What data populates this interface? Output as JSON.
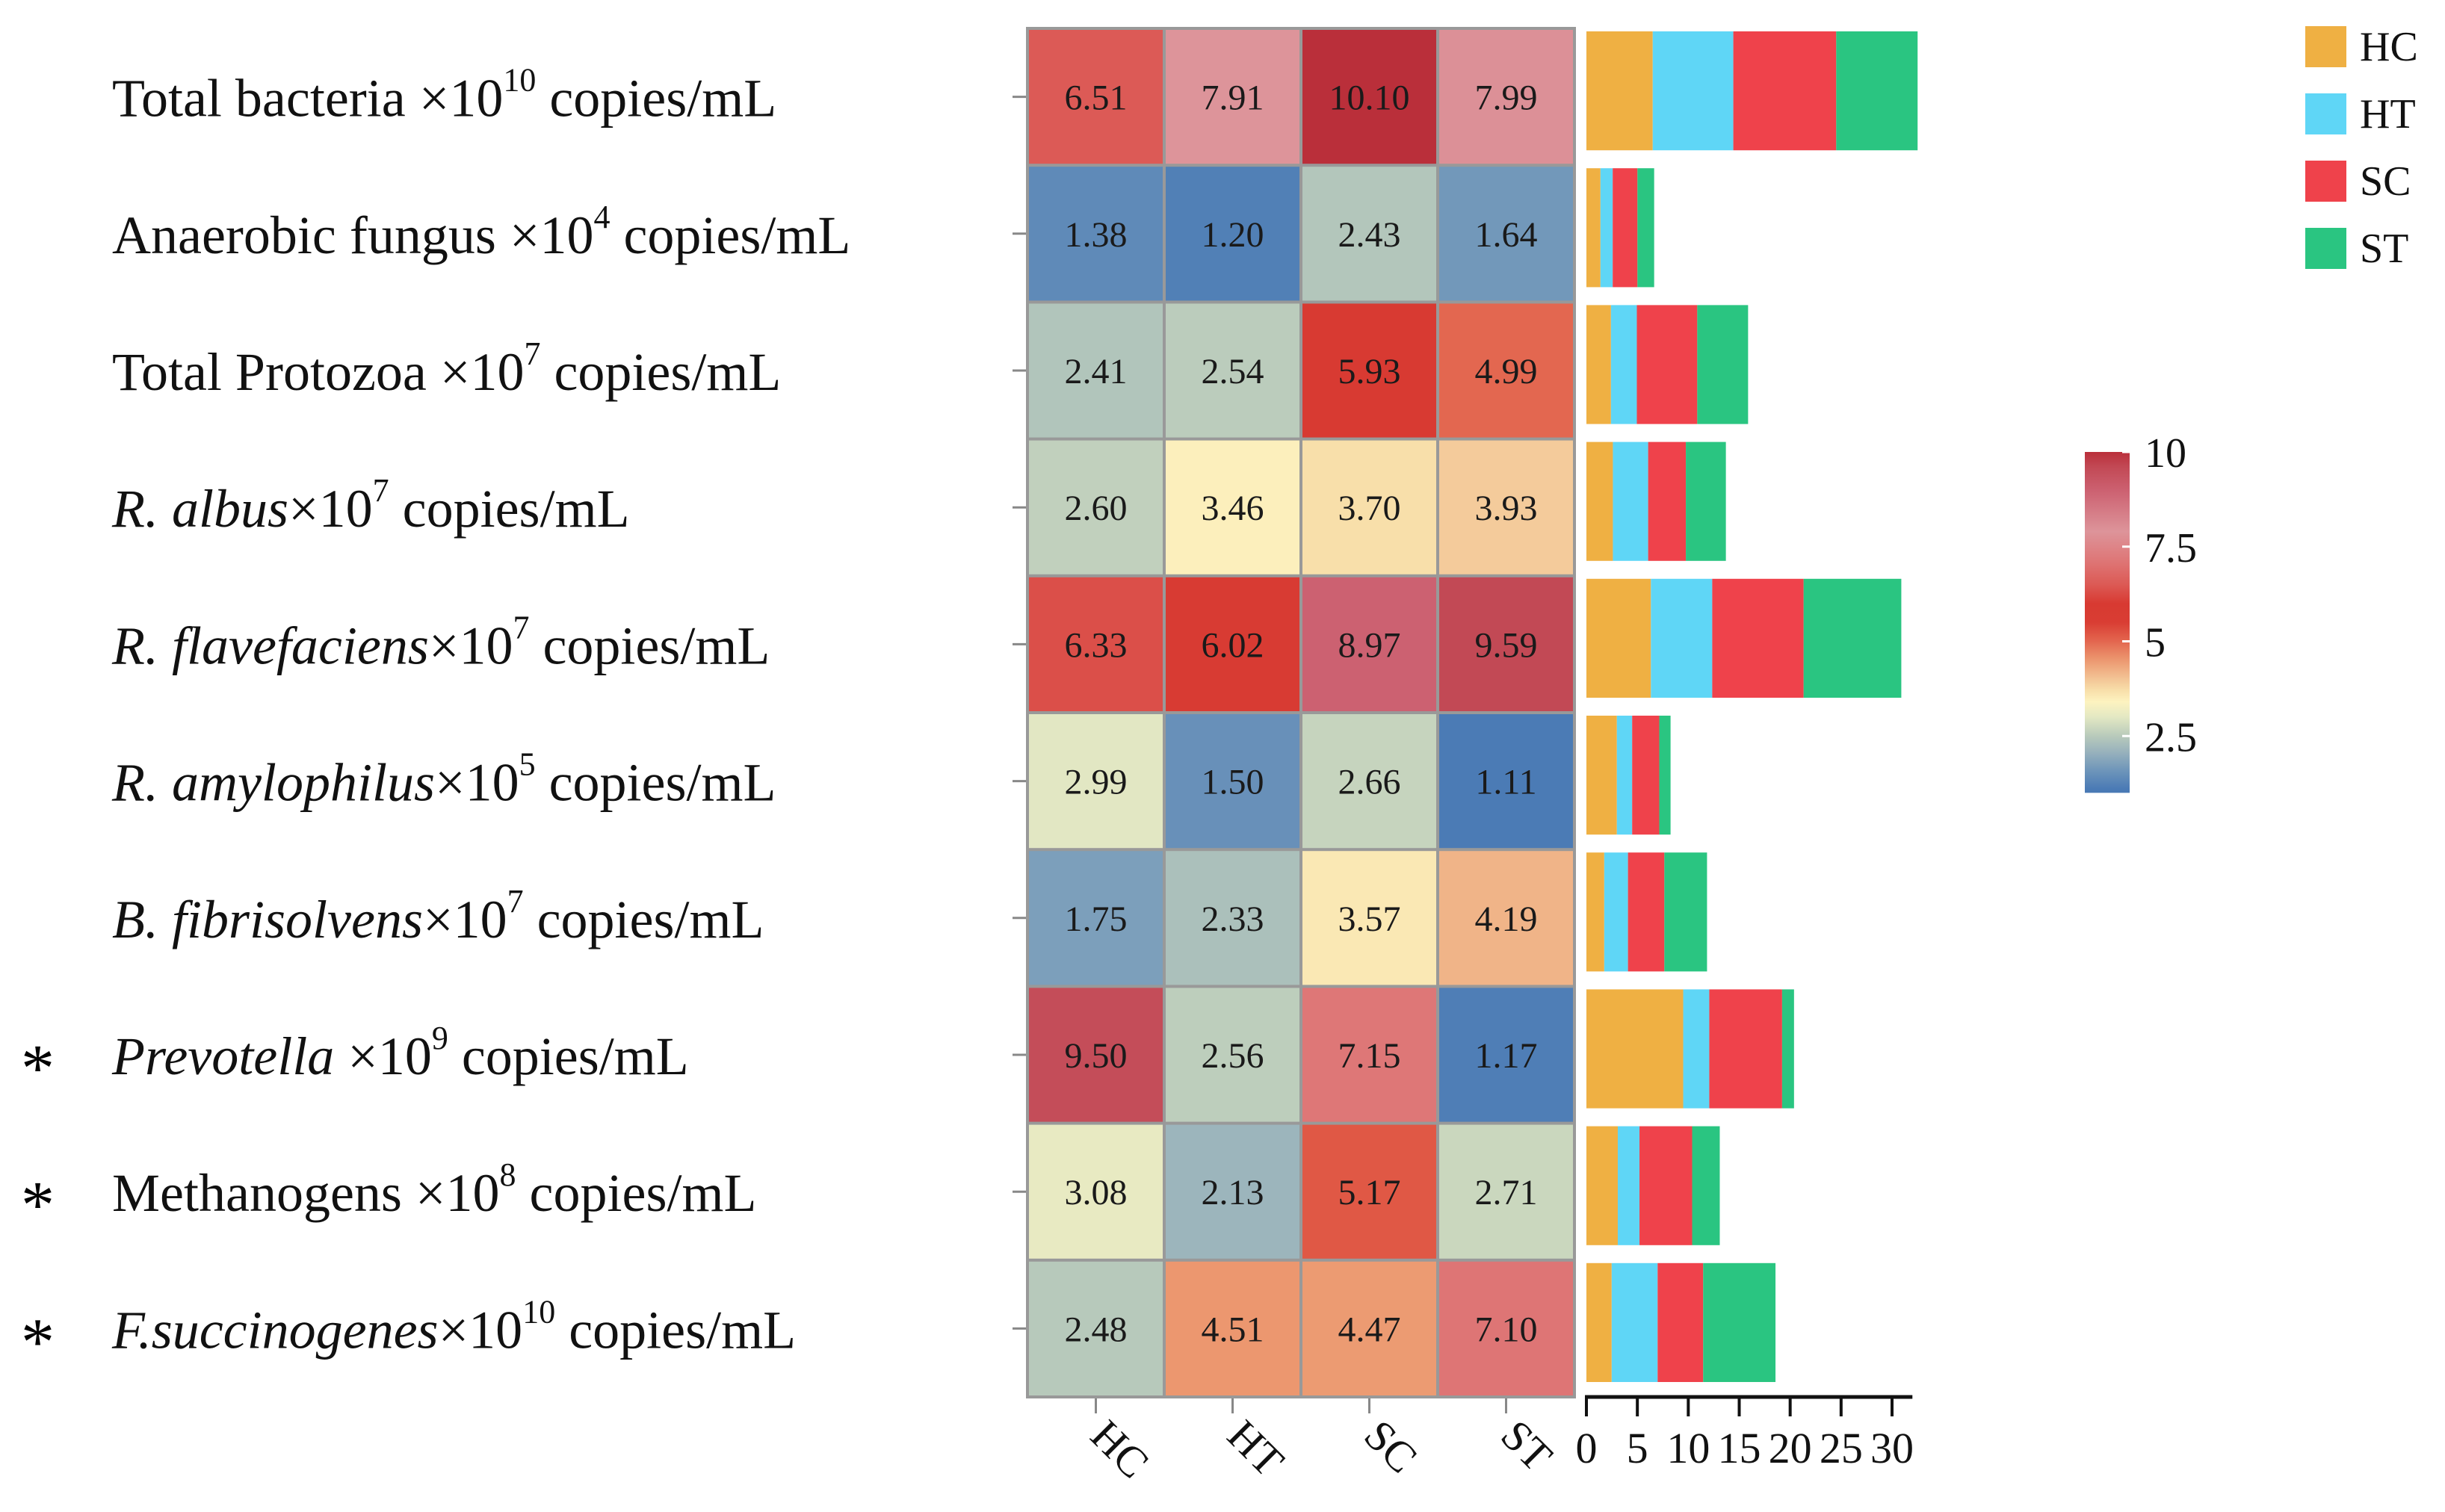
{
  "chart_data": {
    "type": "heatmap",
    "columns": [
      "HC",
      "HT",
      "SC",
      "ST"
    ],
    "rows": [
      {
        "marker": "",
        "name": "Total bacteria",
        "italic": false,
        "exponent": "10",
        "unit": " copies/mL",
        "values": [
          6.51,
          7.91,
          10.1,
          7.99
        ]
      },
      {
        "marker": "",
        "name": "Anaerobic fungus",
        "italic": false,
        "exponent": "4",
        "unit": " copies/mL",
        "values": [
          1.38,
          1.2,
          2.43,
          1.64
        ]
      },
      {
        "marker": "",
        "name": "Total Protozoa",
        "italic": false,
        "exponent": "7",
        "unit": " copies/mL",
        "values": [
          2.41,
          2.54,
          5.93,
          4.99
        ]
      },
      {
        "marker": "",
        "name": "R. albus",
        "italic": true,
        "exponent": "7",
        "unit": " copies/mL",
        "values": [
          2.6,
          3.46,
          3.7,
          3.93
        ]
      },
      {
        "marker": "",
        "name": "R. flavefaciens",
        "italic": true,
        "exponent": "7",
        "unit": " copies/mL",
        "values": [
          6.33,
          6.02,
          8.97,
          9.59
        ]
      },
      {
        "marker": "",
        "name": "R. amylophilus",
        "italic": true,
        "exponent": "5",
        "unit": " copies/mL",
        "values": [
          2.99,
          1.5,
          2.66,
          1.11
        ]
      },
      {
        "marker": "",
        "name": "B. fibrisolvens",
        "italic": true,
        "exponent": "7",
        "unit": " copies/mL",
        "values": [
          1.75,
          2.33,
          3.57,
          4.19
        ]
      },
      {
        "marker": "*",
        "name": "Prevotella",
        "italic": true,
        "exponent": "9",
        "unit": " copies/mL",
        "values": [
          9.5,
          2.56,
          7.15,
          1.17
        ]
      },
      {
        "marker": "*",
        "name": "Methanogens",
        "italic": false,
        "exponent": "8",
        "unit": " copies/mL",
        "values": [
          3.08,
          2.13,
          5.17,
          2.71
        ]
      },
      {
        "marker": "*",
        "name": "F.succinogenes",
        "italic": true,
        "exponent": "10",
        "unit": " copies/mL",
        "values": [
          2.48,
          4.51,
          4.47,
          7.1
        ]
      }
    ],
    "times_prefix": "×10",
    "bar_panel": {
      "type": "stacked-bar",
      "xlim": [
        0,
        32
      ],
      "xticks": [
        "0",
        "5",
        "10",
        "15",
        "20",
        "25",
        "30"
      ],
      "series_colors": {
        "HC": "#efb043",
        "HT": "#5fd6f6",
        "SC": "#ef424b",
        "ST": "#2ac581"
      }
    },
    "legend": [
      {
        "label": "HC",
        "color": "#efb043"
      },
      {
        "label": "HT",
        "color": "#5fd6f6"
      },
      {
        "label": "SC",
        "color": "#ef424b"
      },
      {
        "label": "ST",
        "color": "#2ac581"
      }
    ],
    "colorbar": {
      "range": [
        1,
        10
      ],
      "ticks": [
        "10",
        "7.5",
        "5",
        "2.5"
      ],
      "stops": [
        [
          1.1,
          "#4a7ab5"
        ],
        [
          1.6,
          "#6f96ba"
        ],
        [
          2.1,
          "#9ab3bc"
        ],
        [
          2.5,
          "#b8cabb"
        ],
        [
          3.0,
          "#e3e8c3"
        ],
        [
          3.4,
          "#fdf3c0"
        ],
        [
          3.7,
          "#f8dfaa"
        ],
        [
          4.0,
          "#f3c596"
        ],
        [
          4.5,
          "#ec9870"
        ],
        [
          5.0,
          "#e3664f"
        ],
        [
          5.5,
          "#d93d33"
        ],
        [
          6.0,
          "#d83a32"
        ],
        [
          6.5,
          "#dc5a55"
        ],
        [
          7.1,
          "#de7575"
        ],
        [
          7.9,
          "#dd949a"
        ],
        [
          9.0,
          "#cc6070"
        ],
        [
          9.6,
          "#c24955"
        ],
        [
          10.1,
          "#ba2f3a"
        ]
      ]
    }
  }
}
